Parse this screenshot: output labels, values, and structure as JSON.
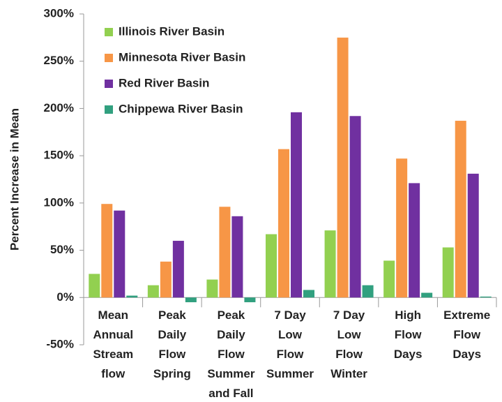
{
  "chart_data": {
    "type": "bar",
    "ylabel": "Percent Increase in Mean",
    "categories": [
      [
        "Mean",
        "Annual",
        "Stream",
        "flow"
      ],
      [
        "Peak",
        "Daily",
        "Flow",
        "Spring"
      ],
      [
        "Peak",
        "Daily",
        "Flow",
        "Summer",
        "and Fall"
      ],
      [
        "7 Day",
        "Low",
        "Flow",
        "Summer"
      ],
      [
        "7 Day",
        "Low",
        "Flow",
        "Winter"
      ],
      [
        "High",
        "Flow",
        "Days"
      ],
      [
        "Extreme",
        "Flow",
        "Days"
      ]
    ],
    "series": [
      {
        "name": "Illinois River Basin",
        "color": "#92d050",
        "values": [
          25,
          13,
          19,
          67,
          71,
          39,
          53
        ]
      },
      {
        "name": "Minnesota River Basin",
        "color": "#f79646",
        "values": [
          99,
          38,
          96,
          157,
          275,
          147,
          187
        ]
      },
      {
        "name": "Red River Basin",
        "color": "#7030a0",
        "values": [
          92,
          60,
          86,
          196,
          192,
          121,
          131
        ]
      },
      {
        "name": "Chippewa River Basin",
        "color": "#31a07f",
        "values": [
          2,
          -5,
          -5,
          8,
          13,
          5,
          1
        ]
      }
    ],
    "ylim": [
      -50,
      300
    ],
    "yticks": [
      {
        "value": -50,
        "label": "-50%"
      },
      {
        "value": 0,
        "label": "0%"
      },
      {
        "value": 50,
        "label": "50%"
      },
      {
        "value": 100,
        "label": "100%"
      },
      {
        "value": 150,
        "label": "150%"
      },
      {
        "value": 200,
        "label": "200%"
      },
      {
        "value": 250,
        "label": "250%"
      },
      {
        "value": 300,
        "label": "300%"
      }
    ],
    "legend": "top-left"
  }
}
